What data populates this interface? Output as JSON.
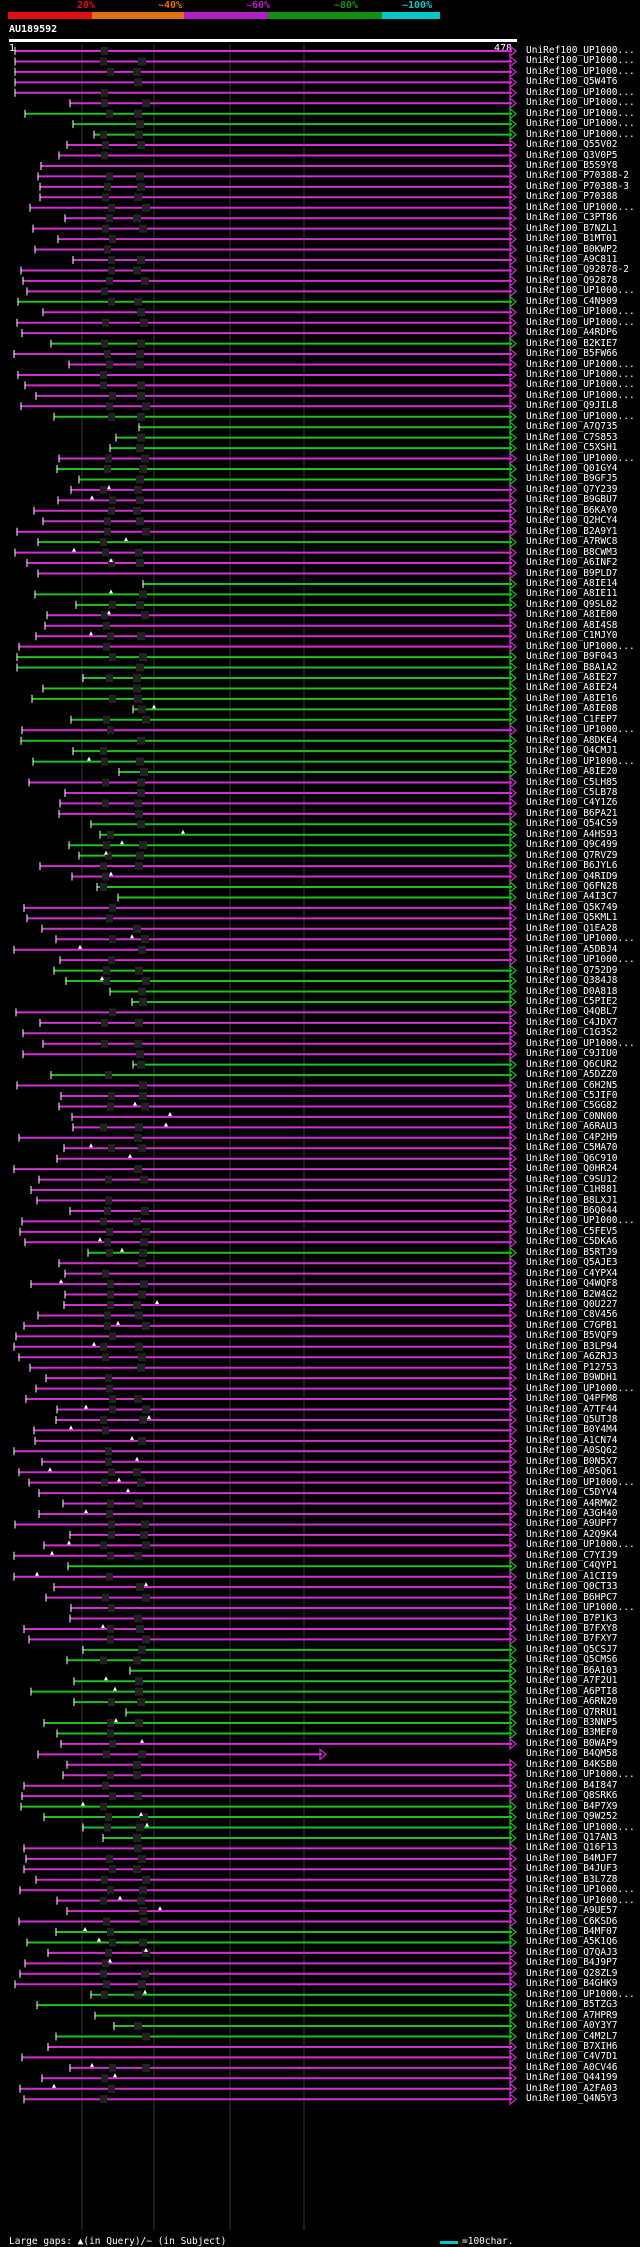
{
  "scale": {
    "labels": [
      "20%",
      "~40%",
      "~60%",
      "~80%",
      "~100%"
    ],
    "colors": [
      "#e01010",
      "#e07010",
      "#b020c0",
      "#109010",
      "#00c8c8"
    ]
  },
  "query": {
    "title": "AU189592",
    "start": "1",
    "end": "478"
  },
  "colors": {
    "magenta": "#d030d0",
    "green": "#20c020",
    "gray": "#606060",
    "dark_segment": "#000000",
    "gridline": "#333333"
  },
  "footer": {
    "legend": "Large gaps: ▲(in Query)/− (in Subject)",
    "scale_text": "=100char."
  },
  "hits": [
    "UniRef100_UP1000...",
    "UniRef100_UP1000...",
    "UniRef100_UP1000...",
    "UniRef100_Q5W4T6",
    "UniRef100_UP1000...",
    "UniRef100_UP1000...",
    "UniRef100_UP1000...",
    "UniRef100_UP1000...",
    "UniRef100_UP1000...",
    "UniRef100_Q55V02",
    "UniRef100_Q3V0P5",
    "UniRef100_B5S9Y8",
    "UniRef100_P70388-2",
    "UniRef100_P70388-3",
    "UniRef100_P70388",
    "UniRef100_UP1000...",
    "UniRef100_C3PT86",
    "UniRef100_B7NZL1",
    "UniRef100_B1MT01",
    "UniRef100_B0KWP2",
    "UniRef100_A9C811",
    "UniRef100_Q92878-2",
    "UniRef100_Q92878",
    "UniRef100_UP1000...",
    "UniRef100_C4N909",
    "UniRef100_UP1000...",
    "UniRef100_UP1000...",
    "UniRef100_A4RDP6",
    "UniRef100_B2KIE7",
    "UniRef100_B5FW66",
    "UniRef100_UP1000...",
    "UniRef100_UP1000...",
    "UniRef100_UP1000...",
    "UniRef100_UP1000...",
    "UniRef100_Q9JIL8",
    "UniRef100_UP1000...",
    "UniRef100_A7Q735",
    "UniRef100_C7S853",
    "UniRef100_C5XSH1",
    "UniRef100_UP1000...",
    "UniRef100_Q01GY4",
    "UniRef100_B9GFJ5",
    "UniRef100_Q7Y239",
    "UniRef100_B9GBU7",
    "UniRef100_B6KAY0",
    "UniRef100_Q2HCY4",
    "UniRef100_B2A9Y1",
    "UniRef100_A7RWC8",
    "UniRef100_B8CWM3",
    "UniRef100_A6INF2",
    "UniRef100_B9PLD7",
    "UniRef100_A8IE14",
    "UniRef100_A8IE11",
    "UniRef100_Q9SL02",
    "UniRef100_A8IE00",
    "UniRef100_A8I4S8",
    "UniRef100_C1MJY0",
    "UniRef100_UP1000...",
    "UniRef100_B9F043",
    "UniRef100_B8A1A2",
    "UniRef100_A8IE27",
    "UniRef100_A8IE24",
    "UniRef100_A8IE16",
    "UniRef100_A8IE08",
    "UniRef100_C1FEP7",
    "UniRef100_UP1000...",
    "UniRef100_A8DKE4",
    "UniRef100_Q4CMJ1",
    "UniRef100_UP1000...",
    "UniRef100_A8IE20",
    "UniRef100_C5LH85",
    "UniRef100_C5LB78",
    "UniRef100_C4Y1Z6",
    "UniRef100_B6PA21",
    "UniRef100_Q54CS9",
    "UniRef100_A4HS93",
    "UniRef100_Q9C499",
    "UniRef100_Q7RVZ9",
    "UniRef100_B6JYL6",
    "UniRef100_Q4RID9",
    "UniRef100_Q6FN28",
    "UniRef100_A4I3C7",
    "UniRef100_Q5K749",
    "UniRef100_Q5KML1",
    "UniRef100_Q1EA28",
    "UniRef100_UP1000...",
    "UniRef100_A5DBJ4",
    "UniRef100_UP1000...",
    "UniRef100_Q752D9",
    "UniRef100_Q384J8",
    "UniRef100_D0A818",
    "UniRef100_C5PIE2",
    "UniRef100_Q4QBL7",
    "UniRef100_C4JDX7",
    "UniRef100_C1G3S2",
    "UniRef100_UP1000...",
    "UniRef100_C9JIU0",
    "UniRef100_Q6CUR2",
    "UniRef100_A5DZZ0",
    "UniRef100_C6H2N5",
    "UniRef100_C5JIF0",
    "UniRef100_C5GG82",
    "UniRef100_C0NN00",
    "UniRef100_A6RAU3",
    "UniRef100_C4P2H9",
    "UniRef100_C5MA70",
    "UniRef100_Q6C910",
    "UniRef100_Q0HR24",
    "UniRef100_C9SU12",
    "UniRef100_C1H881",
    "UniRef100_B8LXJ1",
    "UniRef100_B6Q044",
    "UniRef100_UP1000...",
    "UniRef100_C5FEV5",
    "UniRef100_C5DKA6",
    "UniRef100_B5RTJ9",
    "UniRef100_Q5AJE3",
    "UniRef100_C4YPX4",
    "UniRef100_Q4WQF8",
    "UniRef100_B2W4G2",
    "UniRef100_Q0U227",
    "UniRef100_C8V456",
    "UniRef100_C7GPB1",
    "UniRef100_B5VQF9",
    "UniRef100_B3LP94",
    "UniRef100_A6ZRJ3",
    "UniRef100_P12753",
    "UniRef100_B9WDH1",
    "UniRef100_UP1000...",
    "UniRef100_Q4PFM8",
    "UniRef100_A7TF44",
    "UniRef100_Q5UTJ8",
    "UniRef100_B0Y4M4",
    "UniRef100_A1CN74",
    "UniRef100_A0SQ62",
    "UniRef100_B0N5X7",
    "UniRef100_A0SQ61",
    "UniRef100_UP1000...",
    "UniRef100_C5DYV4",
    "UniRef100_A4RMW2",
    "UniRef100_A3GH40",
    "UniRef100_A9UPF7",
    "UniRef100_A2Q9K4",
    "UniRef100_UP1000...",
    "UniRef100_C7YIJ9",
    "UniRef100_C4QYP1",
    "UniRef100_A1CII9",
    "UniRef100_Q0CT33",
    "UniRef100_B6HPC7",
    "UniRef100_UP1000...",
    "UniRef100_B7P1K3",
    "UniRef100_B7FXY8",
    "UniRef100_B7FXY7",
    "UniRef100_Q5CSJ7",
    "UniRef100_Q5CMS6",
    "UniRef100_B6A103",
    "UniRef100_A7F2U1",
    "UniRef100_A6PTI8",
    "UniRef100_A6RN20",
    "UniRef100_Q7RRU1",
    "UniRef100_B3NNP5",
    "UniRef100_B3MEF0",
    "UniRef100_B0WAP9",
    "UniRef100_B4QM58",
    "UniRef100_B4KSB0",
    "UniRef100_UP1000...",
    "UniRef100_B4I847",
    "UniRef100_Q8SRK6",
    "UniRef100_B4P7X9",
    "UniRef100_Q9W252",
    "UniRef100_UP1000...",
    "UniRef100_Q17AN3",
    "UniRef100_Q16F13",
    "UniRef100_B4MJF7",
    "UniRef100_B4JUF3",
    "UniRef100_B3L7Z8",
    "UniRef100_UP1000...",
    "UniRef100_UP1000...",
    "UniRef100_A9UE57",
    "UniRef100_C6KSD6",
    "UniRef100_B4MF07",
    "UniRef100_A5K1Q6",
    "UniRef100_Q7QAJ3",
    "UniRef100_B4J9P7",
    "UniRef100_Q28ZL9",
    "UniRef100_B4GHK9",
    "UniRef100_UP1000...",
    "UniRef100_B5TZG3",
    "UniRef100_A7HPR9",
    "UniRef100_A0Y3Y7",
    "UniRef100_C4M2L7",
    "UniRef100_B7XIH6",
    "UniRef100_C4V7D1",
    "UniRef100_A0CV46",
    "UniRef100_Q44199",
    "UniRef100_A2FA03",
    "UniRef100_Q4N5Y3"
  ]
}
